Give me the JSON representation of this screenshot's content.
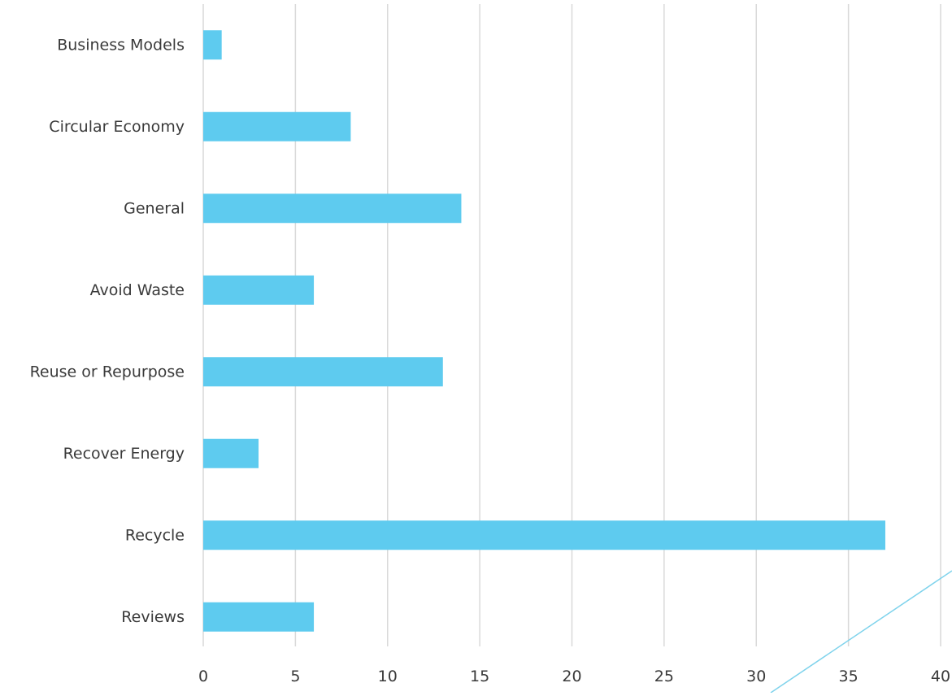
{
  "chart_data": {
    "type": "bar",
    "orientation": "horizontal",
    "title": "",
    "xlabel": "",
    "ylabel": "",
    "categories": [
      "Business Models",
      "Circular Economy",
      "General",
      "Avoid Waste",
      "Reuse or Repurpose",
      "Recover Energy",
      "Recycle",
      "Reviews"
    ],
    "values": [
      1,
      8,
      14,
      6,
      13,
      3,
      37,
      6
    ],
    "xlim": [
      0,
      40
    ],
    "xticks": [
      0,
      5,
      10,
      15,
      20,
      25,
      30,
      35,
      40
    ],
    "grid": "vertical",
    "legend": "none",
    "bar_color": "#5ecbef",
    "grid_color": "#d9d9d9",
    "decorative_line_color": "#7fd3ec"
  }
}
